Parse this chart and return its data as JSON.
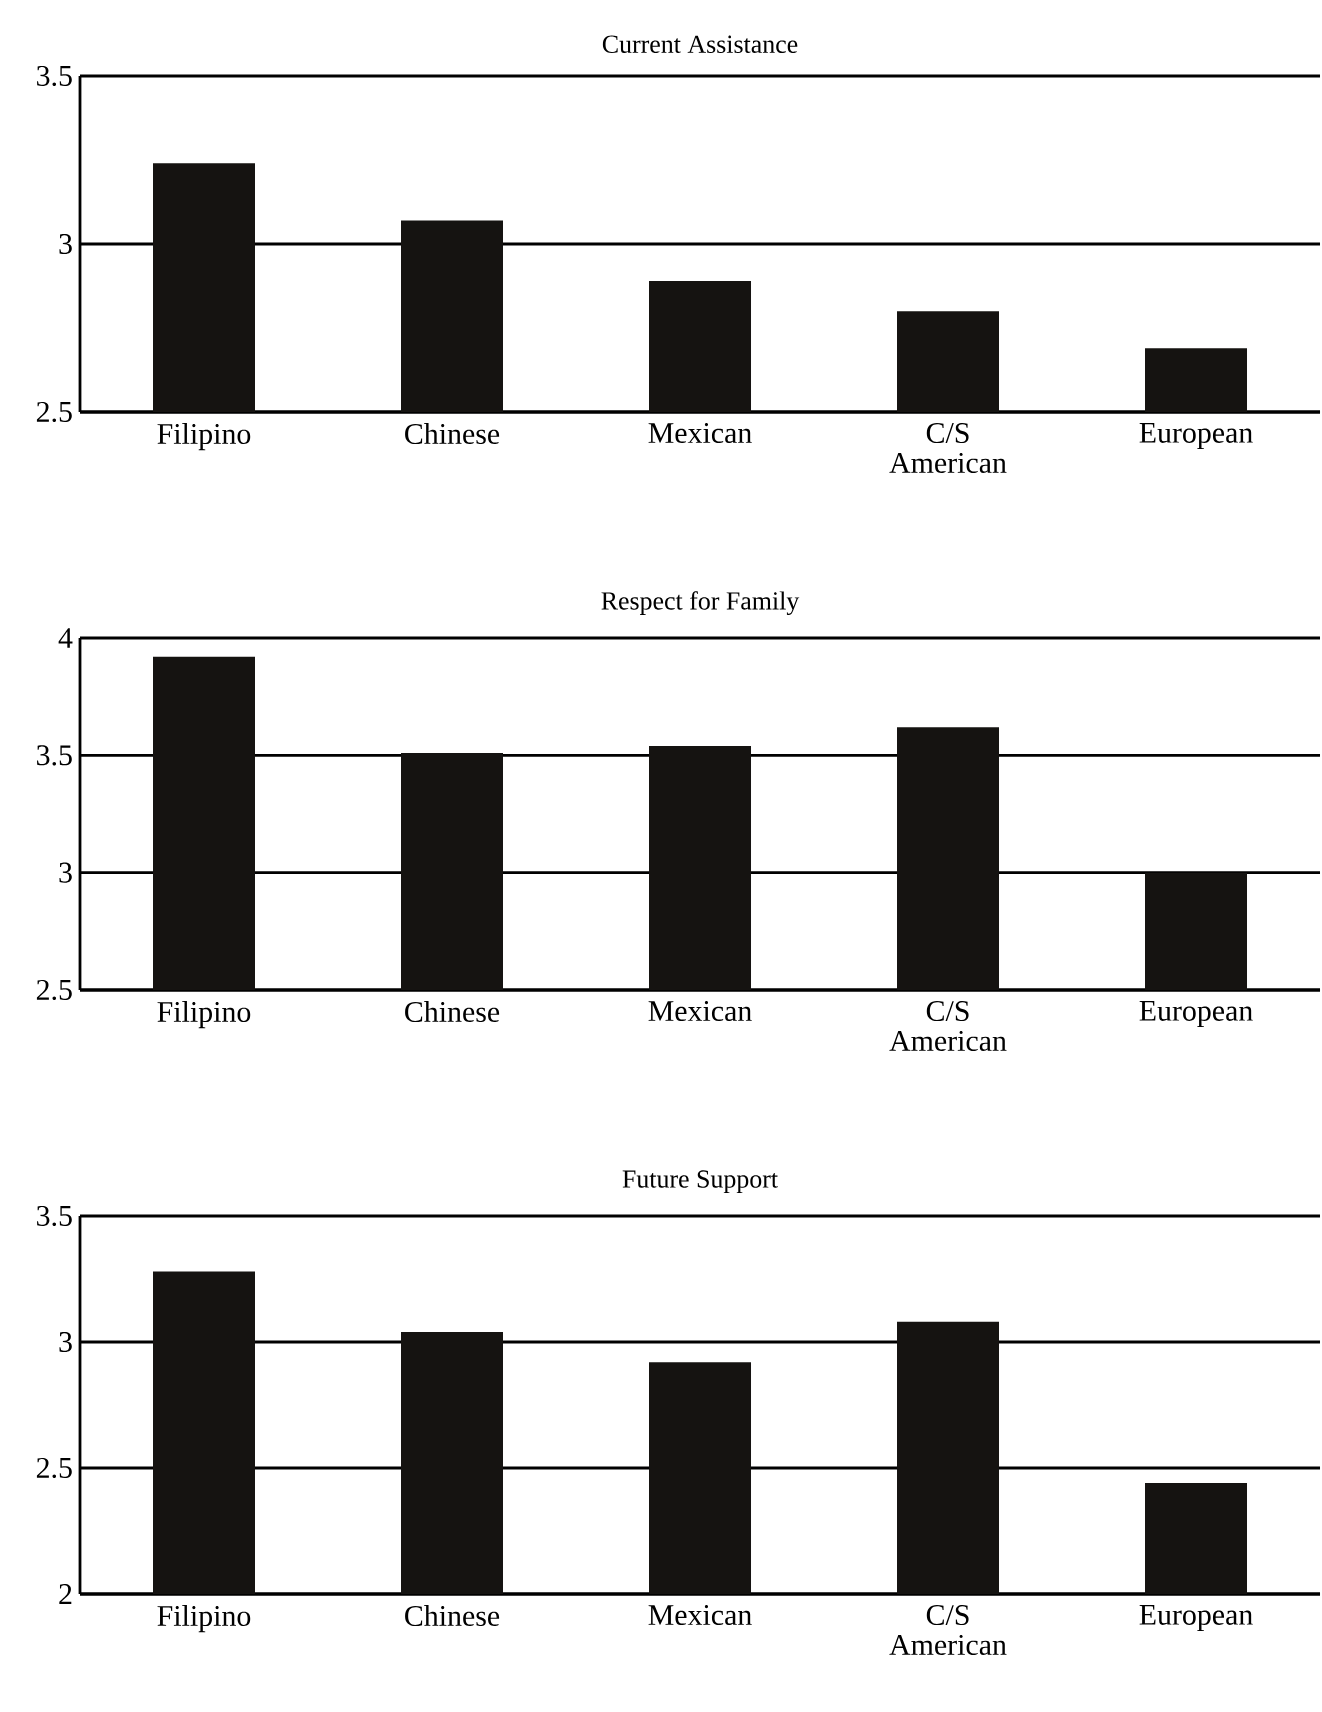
{
  "chart_data": [
    {
      "type": "bar",
      "title": "Current Assistance",
      "categories": [
        "Filipino",
        "Chinese",
        "Mexican",
        "C/S American",
        "European"
      ],
      "values": [
        3.24,
        3.07,
        2.89,
        2.8,
        2.69
      ],
      "color": "#151311",
      "ylim": [
        2.5,
        3.5
      ],
      "yticks": [
        2.5,
        3,
        3.5
      ],
      "grid": "y"
    },
    {
      "type": "bar",
      "title": "Respect for Family",
      "categories": [
        "Filipino",
        "Chinese",
        "Mexican",
        "C/S American",
        "European"
      ],
      "values": [
        3.92,
        3.51,
        3.54,
        3.62,
        3.0
      ],
      "color": "#151311",
      "ylim": [
        2.5,
        4
      ],
      "yticks": [
        2.5,
        3,
        3.5,
        4
      ],
      "grid": "y"
    },
    {
      "type": "bar",
      "title": "Future Support",
      "categories": [
        "Filipino",
        "Chinese",
        "Mexican",
        "C/S American",
        "European"
      ],
      "values": [
        3.28,
        3.04,
        2.92,
        3.08,
        2.44
      ],
      "color": "#151311",
      "ylim": [
        2,
        3.5
      ],
      "yticks": [
        2,
        2.5,
        3,
        3.5
      ],
      "grid": "y"
    }
  ]
}
